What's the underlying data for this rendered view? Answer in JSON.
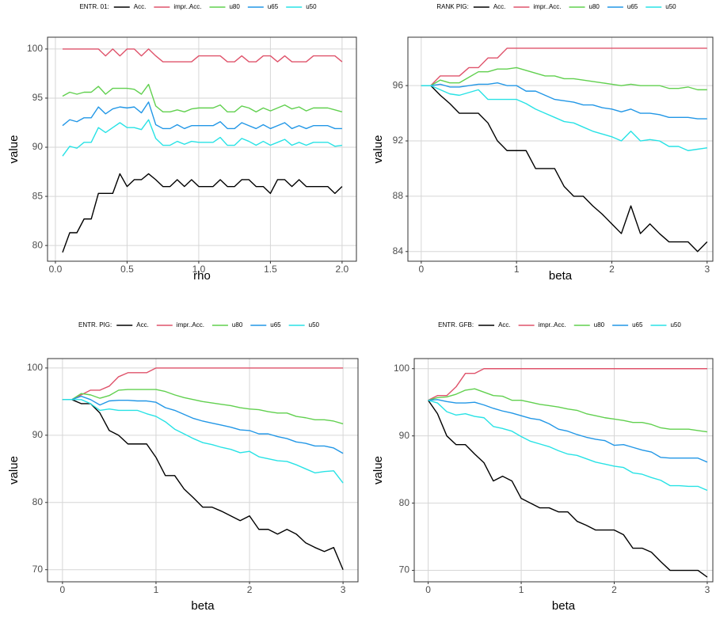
{
  "chart_data": [
    {
      "type": "line",
      "legend_title": "ENTR. 01:",
      "x_label": "rho",
      "y_label": "value",
      "x": [
        0.05,
        0.1,
        0.15,
        0.2,
        0.25,
        0.3,
        0.35,
        0.4,
        0.45,
        0.5,
        0.55,
        0.6,
        0.65,
        0.7,
        0.75,
        0.8,
        0.85,
        0.9,
        0.95,
        1.0,
        1.05,
        1.1,
        1.15,
        1.2,
        1.25,
        1.3,
        1.35,
        1.4,
        1.45,
        1.5,
        1.55,
        1.6,
        1.65,
        1.7,
        1.75,
        1.8,
        1.85,
        1.9,
        1.95,
        2.0
      ],
      "xlim": [
        -0.055,
        2.1
      ],
      "xticks": [
        {
          "value": 0,
          "label": "0.0"
        },
        0.5,
        {
          "value": 1,
          "label": "1.0"
        },
        1.5,
        {
          "value": 2,
          "label": "2.0"
        }
      ],
      "ylim": [
        78.4,
        101.2
      ],
      "yticks": [
        80,
        85,
        90,
        95,
        100
      ],
      "grid": true,
      "series": [
        {
          "name": "Acc.",
          "color": "#000000",
          "values": [
            79.3,
            81.3,
            81.3,
            82.7,
            82.7,
            85.3,
            85.3,
            85.3,
            87.3,
            86,
            86.7,
            86.7,
            87.3,
            86.7,
            86,
            86,
            86.7,
            86,
            86.7,
            86,
            86,
            86,
            86.7,
            86,
            86,
            86.7,
            86.7,
            86,
            86,
            85.3,
            86.7,
            86.7,
            86,
            86.7,
            86,
            86,
            86,
            86,
            85.3,
            86
          ]
        },
        {
          "name": "impr..Acc.",
          "color": "#df536b",
          "values": [
            100,
            100,
            100,
            100,
            100,
            100,
            99.3,
            100,
            99.3,
            100,
            100,
            99.3,
            100,
            99.3,
            98.7,
            98.7,
            98.7,
            98.7,
            98.7,
            99.3,
            99.3,
            99.3,
            99.3,
            98.7,
            98.7,
            99.3,
            98.7,
            98.7,
            99.3,
            99.3,
            98.7,
            99.3,
            98.7,
            98.7,
            98.7,
            99.3,
            99.3,
            99.3,
            99.3,
            98.7
          ]
        },
        {
          "name": "u80",
          "color": "#61d04f",
          "values": [
            95.2,
            95.6,
            95.4,
            95.6,
            95.6,
            96.2,
            95.4,
            96,
            96,
            96,
            95.9,
            95.4,
            96.4,
            94.2,
            93.6,
            93.6,
            93.8,
            93.6,
            93.9,
            94,
            94,
            94,
            94.3,
            93.6,
            93.6,
            94.2,
            94,
            93.6,
            94,
            93.7,
            94,
            94.3,
            93.9,
            94.1,
            93.7,
            94,
            94,
            94,
            93.8,
            93.6
          ]
        },
        {
          "name": "u65",
          "color": "#2297e6",
          "values": [
            92.2,
            92.8,
            92.6,
            93,
            93,
            94.1,
            93.4,
            93.9,
            94.1,
            94,
            94.1,
            93.5,
            94.6,
            92.3,
            91.9,
            91.9,
            92.3,
            91.9,
            92.2,
            92.2,
            92.2,
            92.2,
            92.6,
            91.9,
            91.9,
            92.5,
            92.2,
            91.9,
            92.3,
            91.9,
            92.2,
            92.5,
            91.9,
            92.2,
            91.9,
            92.2,
            92.2,
            92.2,
            91.9,
            91.9
          ]
        },
        {
          "name": "u50",
          "color": "#28e2e5",
          "values": [
            89.1,
            90.1,
            89.9,
            90.5,
            90.5,
            92,
            91.5,
            92,
            92.5,
            92,
            92,
            91.8,
            92.8,
            90.9,
            90.2,
            90.2,
            90.6,
            90.3,
            90.6,
            90.5,
            90.5,
            90.5,
            91,
            90.2,
            90.2,
            90.9,
            90.6,
            90.2,
            90.6,
            90.2,
            90.5,
            90.8,
            90.2,
            90.5,
            90.2,
            90.5,
            90.5,
            90.5,
            90.1,
            90.2
          ]
        }
      ]
    },
    {
      "type": "line",
      "legend_title": "RANK PIG:",
      "x_label": "beta",
      "y_label": "value",
      "x": [
        0,
        0.1,
        0.2,
        0.3,
        0.4,
        0.5,
        0.6,
        0.7,
        0.8,
        0.9,
        1.0,
        1.1,
        1.2,
        1.3,
        1.4,
        1.5,
        1.6,
        1.7,
        1.8,
        1.9,
        2.0,
        2.1,
        2.2,
        2.3,
        2.4,
        2.5,
        2.6,
        2.7,
        2.8,
        2.9,
        3.0
      ],
      "xlim": [
        -0.14,
        3.06
      ],
      "xticks": [
        0,
        1,
        2,
        3
      ],
      "ylim": [
        83.3,
        99.5
      ],
      "yticks": [
        84,
        88,
        92,
        96
      ],
      "grid": true,
      "series": [
        {
          "name": "Acc.",
          "color": "#000000",
          "values": [
            96,
            96,
            95.3,
            94.7,
            94,
            94,
            94,
            93.3,
            92,
            91.3,
            91.3,
            91.3,
            90,
            90,
            90,
            88.7,
            88,
            88,
            87.3,
            86.7,
            86,
            85.3,
            87.3,
            85.3,
            86,
            85.3,
            84.7,
            84.7,
            84.7,
            84,
            84.7
          ]
        },
        {
          "name": "impr..Acc.",
          "color": "#df536b",
          "values": [
            96,
            96,
            96.7,
            96.7,
            96.7,
            97.3,
            97.3,
            98,
            98,
            98.7,
            98.7,
            98.7,
            98.7,
            98.7,
            98.7,
            98.7,
            98.7,
            98.7,
            98.7,
            98.7,
            98.7,
            98.7,
            98.7,
            98.7,
            98.7,
            98.7,
            98.7,
            98.7,
            98.7,
            98.7,
            98.7
          ]
        },
        {
          "name": "u80",
          "color": "#61d04f",
          "values": [
            96,
            96,
            96.4,
            96.2,
            96.2,
            96.6,
            97,
            97,
            97.2,
            97.2,
            97.3,
            97.1,
            96.9,
            96.7,
            96.7,
            96.5,
            96.5,
            96.4,
            96.3,
            96.2,
            96.1,
            96,
            96.1,
            96,
            96,
            96,
            95.8,
            95.8,
            95.9,
            95.7,
            95.7
          ]
        },
        {
          "name": "u65",
          "color": "#2297e6",
          "values": [
            96,
            96,
            96.1,
            95.9,
            95.9,
            96,
            96.1,
            96.1,
            96.2,
            96,
            96,
            95.6,
            95.6,
            95.3,
            95,
            94.9,
            94.8,
            94.6,
            94.6,
            94.4,
            94.3,
            94.1,
            94.3,
            94,
            94,
            93.9,
            93.7,
            93.7,
            93.7,
            93.6,
            93.6
          ]
        },
        {
          "name": "u50",
          "color": "#28e2e5",
          "values": [
            96,
            96,
            95.7,
            95.4,
            95.3,
            95.5,
            95.7,
            95,
            95,
            95,
            95,
            94.7,
            94.3,
            94,
            93.7,
            93.4,
            93.3,
            93,
            92.7,
            92.5,
            92.3,
            92,
            92.7,
            92,
            92.1,
            92,
            91.6,
            91.6,
            91.3,
            91.4,
            91.5
          ]
        }
      ]
    },
    {
      "type": "line",
      "legend_title": "ENTR. PIG:",
      "x_label": "beta",
      "y_label": "value",
      "x": [
        0,
        0.1,
        0.2,
        0.3,
        0.4,
        0.5,
        0.6,
        0.7,
        0.8,
        0.9,
        1.0,
        1.1,
        1.2,
        1.3,
        1.4,
        1.5,
        1.6,
        1.7,
        1.8,
        1.9,
        2.0,
        2.1,
        2.2,
        2.3,
        2.4,
        2.5,
        2.6,
        2.7,
        2.8,
        2.9,
        3.0
      ],
      "xlim": [
        -0.16,
        3.16
      ],
      "xticks": [
        0,
        1,
        2,
        3
      ],
      "ylim": [
        68.2,
        101.4
      ],
      "yticks": [
        70,
        80,
        90,
        100
      ],
      "grid": true,
      "series": [
        {
          "name": "Acc.",
          "color": "#000000",
          "values": [
            95.3,
            95.3,
            94.7,
            94.7,
            93.3,
            90.7,
            90,
            88.7,
            88.7,
            88.7,
            86.7,
            84,
            84,
            82,
            80.7,
            79.3,
            79.3,
            78.7,
            78,
            77.3,
            78,
            76,
            76,
            75.3,
            76,
            75.3,
            74,
            73.3,
            72.7,
            73.3,
            70
          ]
        },
        {
          "name": "impr..Acc.",
          "color": "#df536b",
          "values": [
            95.3,
            95.3,
            96,
            96.7,
            96.7,
            97.3,
            98.7,
            99.3,
            99.3,
            99.3,
            100,
            100,
            100,
            100,
            100,
            100,
            100,
            100,
            100,
            100,
            100,
            100,
            100,
            100,
            100,
            100,
            100,
            100,
            100,
            100,
            100
          ]
        },
        {
          "name": "u80",
          "color": "#61d04f",
          "values": [
            95.3,
            95.3,
            96.2,
            96,
            95.5,
            95.9,
            96.7,
            96.8,
            96.8,
            96.8,
            96.8,
            96.5,
            96,
            95.6,
            95.3,
            95,
            94.8,
            94.6,
            94.4,
            94.1,
            93.9,
            93.8,
            93.5,
            93.3,
            93.3,
            92.8,
            92.6,
            92.3,
            92.3,
            92.1,
            91.7
          ]
        },
        {
          "name": "u65",
          "color": "#2297e6",
          "values": [
            95.3,
            95.3,
            95.8,
            95.3,
            94.5,
            95.1,
            95.2,
            95.2,
            95.1,
            95.1,
            94.9,
            94.1,
            93.7,
            93.1,
            92.5,
            92.1,
            91.8,
            91.5,
            91.2,
            90.8,
            90.7,
            90.2,
            90.2,
            89.8,
            89.5,
            89,
            88.8,
            88.4,
            88.4,
            88.1,
            87.3
          ]
        },
        {
          "name": "u50",
          "color": "#28e2e5",
          "values": [
            95.3,
            95.3,
            95.3,
            94.7,
            93.7,
            93.9,
            93.7,
            93.7,
            93.7,
            93.2,
            92.8,
            92,
            90.9,
            90.2,
            89.5,
            88.9,
            88.6,
            88.2,
            87.9,
            87.4,
            87.6,
            86.8,
            86.5,
            86.2,
            86.1,
            85.6,
            85,
            84.4,
            84.6,
            84.7,
            82.9
          ]
        }
      ]
    },
    {
      "type": "line",
      "legend_title": "ENTR. GFB:",
      "x_label": "beta",
      "y_label": "value",
      "x": [
        0,
        0.1,
        0.2,
        0.3,
        0.4,
        0.5,
        0.6,
        0.7,
        0.8,
        0.9,
        1.0,
        1.1,
        1.2,
        1.3,
        1.4,
        1.5,
        1.6,
        1.7,
        1.8,
        1.9,
        2.0,
        2.1,
        2.2,
        2.3,
        2.4,
        2.5,
        2.6,
        2.7,
        2.8,
        2.9,
        3.0
      ],
      "xlim": [
        -0.15,
        3.06
      ],
      "xticks": [
        0,
        1,
        2,
        3
      ],
      "ylim": [
        68.3,
        101.5
      ],
      "yticks": [
        70,
        80,
        90,
        100
      ],
      "grid": true,
      "series": [
        {
          "name": "Acc.",
          "color": "#000000",
          "values": [
            95.3,
            93.3,
            90,
            88.7,
            88.7,
            87.3,
            86,
            83.3,
            84,
            83.3,
            80.7,
            80,
            79.3,
            79.3,
            78.7,
            78.7,
            77.3,
            76.7,
            76,
            76,
            76,
            75.3,
            73.3,
            73.3,
            72.7,
            71.3,
            70,
            70,
            70,
            70,
            69
          ]
        },
        {
          "name": "impr..Acc.",
          "color": "#df536b",
          "values": [
            95.3,
            96,
            96,
            97.3,
            99.3,
            99.3,
            100,
            100,
            100,
            100,
            100,
            100,
            100,
            100,
            100,
            100,
            100,
            100,
            100,
            100,
            100,
            100,
            100,
            100,
            100,
            100,
            100,
            100,
            100,
            100,
            100
          ]
        },
        {
          "name": "u80",
          "color": "#61d04f",
          "values": [
            95.3,
            95.7,
            95.8,
            96.2,
            96.8,
            97,
            96.5,
            96,
            95.9,
            95.3,
            95.3,
            95,
            94.7,
            94.5,
            94.3,
            94,
            93.8,
            93.3,
            93,
            92.7,
            92.5,
            92.3,
            92,
            92,
            91.7,
            91.2,
            91,
            91,
            91,
            90.8,
            90.6
          ]
        },
        {
          "name": "u65",
          "color": "#2297e6",
          "values": [
            95.3,
            95.4,
            95.1,
            94.9,
            94.9,
            95,
            94.6,
            94.1,
            93.7,
            93.4,
            93,
            92.6,
            92.4,
            91.8,
            91,
            90.7,
            90.2,
            89.8,
            89.5,
            89.3,
            88.6,
            88.7,
            88.3,
            87.9,
            87.6,
            86.8,
            86.7,
            86.7,
            86.7,
            86.7,
            86.1
          ]
        },
        {
          "name": "u50",
          "color": "#28e2e5",
          "values": [
            95.3,
            94.9,
            93.6,
            93.1,
            93.3,
            92.9,
            92.7,
            91.4,
            91.1,
            90.7,
            89.9,
            89.2,
            88.8,
            88.4,
            87.8,
            87.3,
            87.1,
            86.6,
            86.1,
            85.8,
            85.5,
            85.3,
            84.5,
            84.3,
            83.8,
            83.4,
            82.6,
            82.6,
            82.5,
            82.5,
            81.9
          ]
        }
      ]
    }
  ]
}
